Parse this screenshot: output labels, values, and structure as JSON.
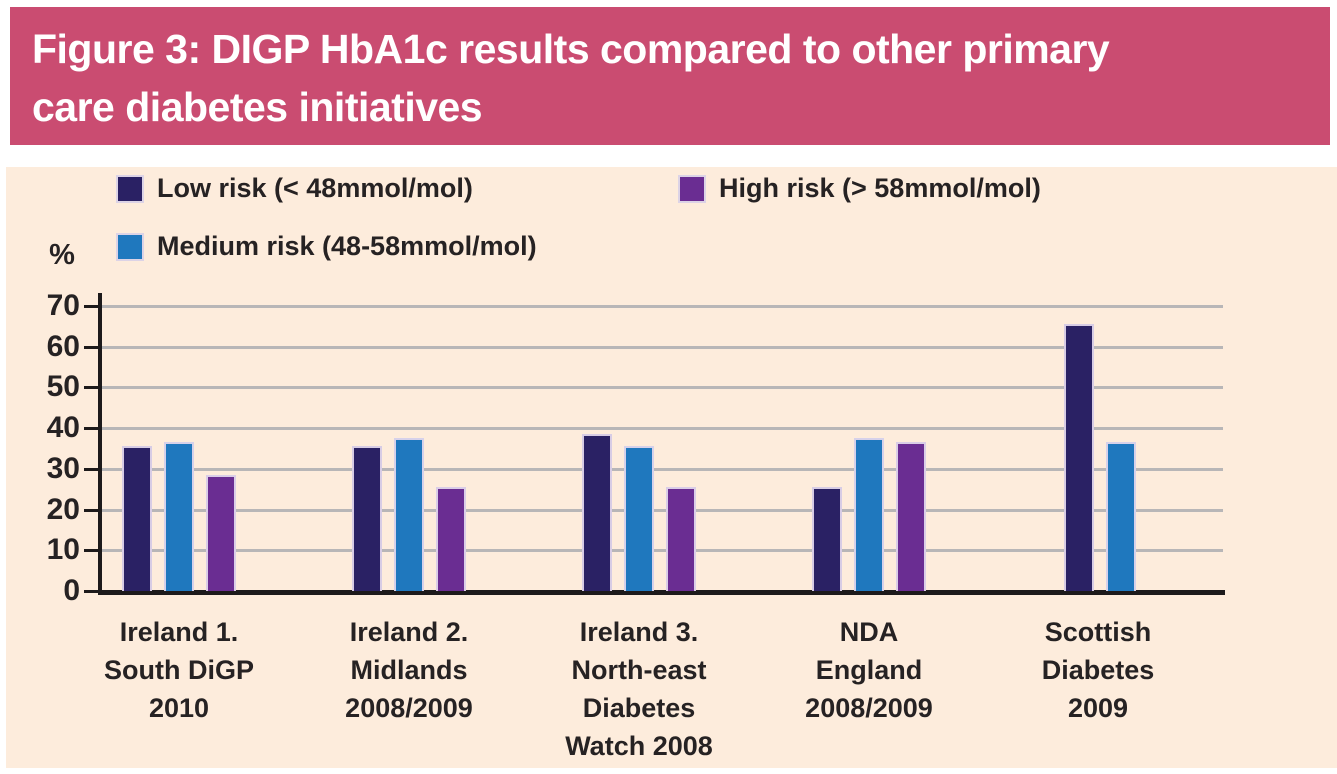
{
  "figure": {
    "title": "Figure 3: DIGP HbA1c results compared to other primary care diabetes initiatives",
    "title_lines": [
      "Figure 3: DIGP HbA1c results compared to other primary",
      "care diabetes initiatives"
    ]
  },
  "chart_data": {
    "type": "bar",
    "title": "DIGP HbA1c results compared to other primary care diabetes initiatives",
    "ylabel": "%",
    "xlabel": "",
    "ylim": [
      0,
      70
    ],
    "yticks": [
      0,
      10,
      20,
      30,
      40,
      50,
      60,
      70
    ],
    "grid": true,
    "legend_position": "top",
    "categories": [
      "Ireland 1. South DiGP 2010",
      "Ireland 2. Midlands 2008/2009",
      "Ireland 3. North-east Diabetes Watch 2008",
      "NDA England 2008/2009",
      "Scottish Diabetes 2009"
    ],
    "category_lines": [
      [
        "Ireland 1.",
        "South DiGP",
        "2010"
      ],
      [
        "Ireland 2.",
        "Midlands",
        "2008/2009"
      ],
      [
        "Ireland 3.",
        "North-east",
        "Diabetes",
        "Watch 2008"
      ],
      [
        "NDA",
        "England",
        "2008/2009"
      ],
      [
        "Scottish",
        "Diabetes",
        "2009"
      ]
    ],
    "series": [
      {
        "name": "Low risk (< 48mmol/mol)",
        "color": "#2a2164",
        "values": [
          35.5,
          35.5,
          38.5,
          25.5,
          65.5
        ]
      },
      {
        "name": "Medium risk (48-58mmol/mol)",
        "color": "#1f78be",
        "values": [
          36.5,
          37.5,
          35.5,
          37.5,
          36.5
        ]
      },
      {
        "name": "High risk (> 58mmol/mol)",
        "color": "#6a2d92",
        "values": [
          28.5,
          25.5,
          25.5,
          36.5,
          null
        ]
      }
    ],
    "colors": {
      "header_bg": "#ca4c71",
      "header_text": "#ffffff",
      "panel_bg": "#fdecdc",
      "text": "#262223",
      "gridline": "#b8b6b7",
      "axis": "#1d1a1b"
    }
  }
}
